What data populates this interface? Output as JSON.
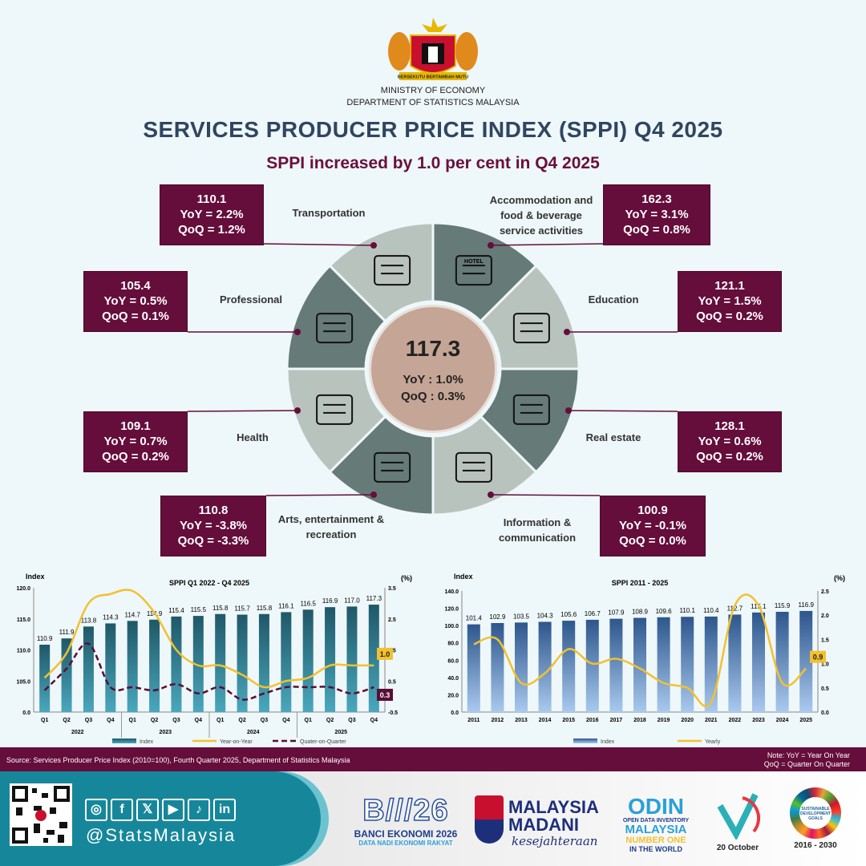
{
  "header": {
    "ministry": "MINISTRY OF ECONOMY",
    "department": "DEPARTMENT OF STATISTICS MALAYSIA",
    "title": "SERVICES PRODUCER PRICE INDEX (SPPI) Q4 2025",
    "subtitle": "SPPI increased by 1.0 per cent in Q4 2025",
    "crest_text": "BERSEKUTU BERTAMBAH MUTU"
  },
  "overall": {
    "index": "117.3",
    "yoy": "YoY  : 1.0%",
    "qoq": "QoQ : 0.3%"
  },
  "sectors": [
    {
      "name": "Transportation",
      "index": "110.1",
      "yoy": "YoY = 2.2%",
      "qoq": "QoQ = 1.2%",
      "icon": "transport-icon"
    },
    {
      "name": "Accommodation and food & beverage service activities",
      "index": "162.3",
      "yoy": "YoY = 3.1%",
      "qoq": "QoQ = 0.8%",
      "icon": "hotel-icon",
      "icon_text": "HOTEL"
    },
    {
      "name": "Professional",
      "index": "105.4",
      "yoy": "YoY = 0.5%",
      "qoq": "QoQ = 0.1%",
      "icon": "professional-icon"
    },
    {
      "name": "Education",
      "index": "121.1",
      "yoy": "YoY = 1.5%",
      "qoq": "QoQ = 0.2%",
      "icon": "education-icon"
    },
    {
      "name": "Health",
      "index": "109.1",
      "yoy": "YoY = 0.7%",
      "qoq": "QoQ = 0.2%",
      "icon": "health-icon"
    },
    {
      "name": "Real estate",
      "index": "128.1",
      "yoy": "YoY = 0.6%",
      "qoq": "QoQ = 0.2%",
      "icon": "real-estate-icon"
    },
    {
      "name": "Arts, entertainment & recreation",
      "index": "110.8",
      "yoy": "YoY = -3.8%",
      "qoq": "QoQ = -3.3%",
      "icon": "arts-icon"
    },
    {
      "name": "Information & communication",
      "index": "100.9",
      "yoy": "YoY = -0.1%",
      "qoq": "QoQ = 0.0%",
      "icon": "communication-icon"
    }
  ],
  "colors": {
    "maroon": "#650d3b",
    "donut_dark": "#667a78",
    "donut_light": "#b9c3bd",
    "center": "#c4a596",
    "yellow": "#f2c12e",
    "teal_bar": "#2a7488",
    "blue_bar": "#3d6aa0"
  },
  "chart_data": [
    {
      "type": "bar",
      "title": "SPPI Q1 2022 - Q4 2025",
      "ylabel": "Index",
      "y2label": "(%)",
      "categories": [
        "Q1",
        "Q2",
        "Q3",
        "Q4",
        "Q1",
        "Q2",
        "Q3",
        "Q4",
        "Q1",
        "Q2",
        "Q3",
        "Q4",
        "Q1",
        "Q2",
        "Q3",
        "Q4"
      ],
      "groups": [
        "2022",
        "2023",
        "2024",
        "2025"
      ],
      "yticks": [
        "0.0",
        "105.0",
        "110.0",
        "115.0",
        "120.0"
      ],
      "y2ticks": [
        "-0.5",
        "0.5",
        "1.5",
        "2.5",
        "3.5"
      ],
      "ylim": [
        0,
        120
      ],
      "y2lim": [
        -0.5,
        3.5
      ],
      "series": [
        {
          "name": "Index",
          "type": "bar",
          "values": [
            110.9,
            111.9,
            113.8,
            114.3,
            114.7,
            114.9,
            115.4,
            115.5,
            115.8,
            115.7,
            115.8,
            116.1,
            116.5,
            116.9,
            117.0,
            117.3
          ],
          "labels": [
            "110.9",
            "111.9",
            "113.8",
            "114.3",
            "114.7",
            "114.9",
            "115.4",
            "115.5",
            "115.8",
            "115.7",
            "115.8",
            "116.1",
            "116.5",
            "116.9",
            "117.0",
            "117.3"
          ]
        },
        {
          "name": "Year-on-Year",
          "type": "line",
          "values": [
            0.6,
            1.4,
            3.0,
            3.3,
            3.4,
            2.7,
            1.5,
            1.0,
            1.0,
            0.7,
            0.3,
            0.5,
            0.6,
            1.0,
            1.0,
            1.0
          ],
          "end_label": "1.0"
        },
        {
          "name": "Quater-on-Quarter",
          "type": "line",
          "dashed": true,
          "values": [
            0.2,
            0.9,
            1.7,
            0.3,
            0.3,
            0.2,
            0.4,
            0.1,
            0.3,
            -0.1,
            0.1,
            0.3,
            0.3,
            0.3,
            0.1,
            0.3
          ],
          "end_label": "0.3"
        }
      ]
    },
    {
      "type": "bar",
      "title": "SPPI 2011 - 2025",
      "ylabel": "Index",
      "y2label": "(%)",
      "categories": [
        "2011",
        "2012",
        "2013",
        "2014",
        "2015",
        "2016",
        "2017",
        "2018",
        "2019",
        "2020",
        "2021",
        "2022",
        "2023",
        "2024",
        "2025"
      ],
      "yticks": [
        "0.0",
        "20.0",
        "40.0",
        "60.0",
        "80.0",
        "100.0",
        "120.0",
        "140.0"
      ],
      "y2ticks": [
        "0.0",
        "0.5",
        "1.0",
        "1.5",
        "2.0",
        "2.5"
      ],
      "ylim": [
        0,
        140
      ],
      "y2lim": [
        0,
        2.5
      ],
      "series": [
        {
          "name": "Index",
          "type": "bar",
          "values": [
            101.4,
            102.9,
            103.5,
            104.3,
            105.6,
            106.7,
            107.9,
            108.9,
            109.6,
            110.1,
            110.4,
            112.7,
            115.1,
            115.9,
            116.9
          ],
          "labels": [
            "101.4",
            "102.9",
            "103.5",
            "104.3",
            "105.6",
            "106.7",
            "107.9",
            "108.9",
            "109.6",
            "110.1",
            "110.4",
            "112.7",
            "115.1",
            "115.9",
            "116.9"
          ]
        },
        {
          "name": "Yearly",
          "type": "line",
          "values": [
            1.4,
            1.5,
            0.6,
            0.8,
            1.3,
            1.0,
            1.1,
            0.9,
            0.6,
            0.5,
            0.2,
            2.2,
            2.2,
            0.6,
            0.9
          ],
          "end_label": "0.9"
        }
      ]
    }
  ],
  "footer": {
    "source": "Source: Services Producer Price Index (2010=100),  Fourth Quarter 2025, Department  of Statistics Malaysia",
    "note1": "Note: YoY  = Year On Year",
    "note2": "QoQ = Quarter On Quarter",
    "handle": "@StatsMalaysia",
    "social": [
      "instagram-icon",
      "facebook-icon",
      "x-icon",
      "youtube-icon",
      "tiktok-icon",
      "linkedin-icon"
    ],
    "social_glyphs": [
      "◎",
      "f",
      "𝕏",
      "▶",
      "♪",
      "in"
    ],
    "banci": "BANCI EKONOMI 2026",
    "banci_sub": "DATA NADI EKONOMI RAKYAT",
    "banci_logo": "B///26",
    "madani1": "MALAYSIA",
    "madani2": "MADANI",
    "madani3": "kesejahteraan",
    "odin1": "ODIN",
    "odin2": "OPEN DATA INVENTORY",
    "odin3": "MALAYSIA",
    "odin4": "NUMBER ONE",
    "odin5": "IN THE WORLD",
    "statday": "20 October",
    "sdg1": "SUSTAINABLE DEVELOPMENT GOALS",
    "sdg2": "2016 - 2030"
  }
}
